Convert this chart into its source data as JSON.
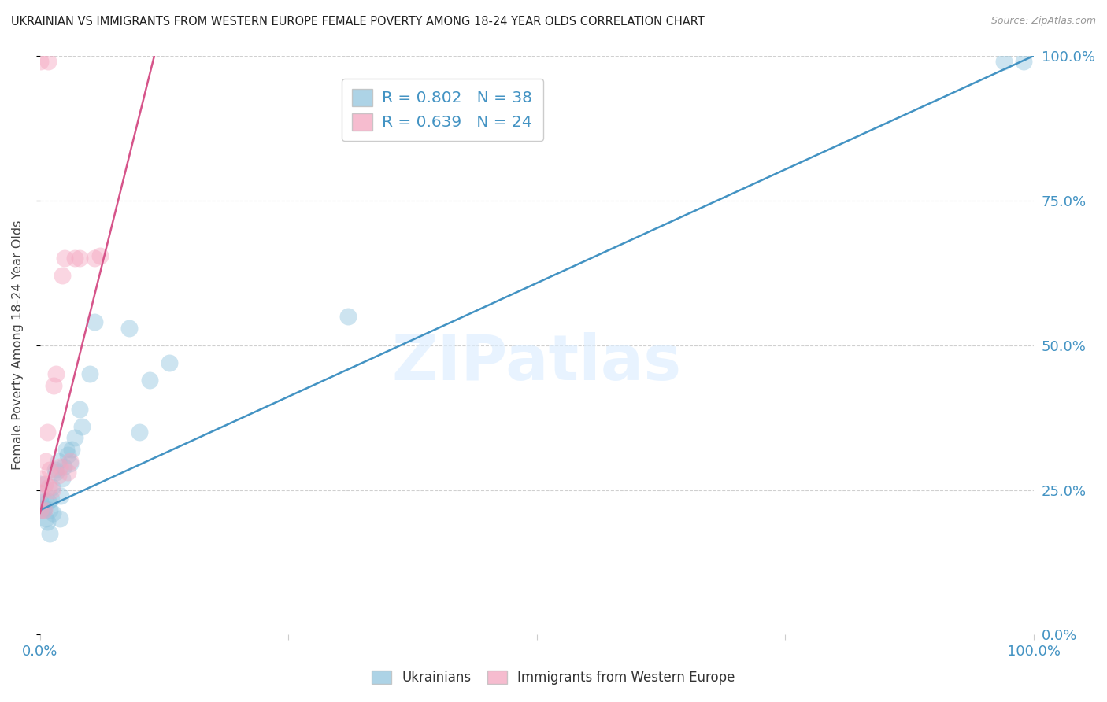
{
  "title": "UKRAINIAN VS IMMIGRANTS FROM WESTERN EUROPE FEMALE POVERTY AMONG 18-24 YEAR OLDS CORRELATION CHART",
  "source": "Source: ZipAtlas.com",
  "ylabel": "Female Poverty Among 18-24 Year Olds",
  "watermark": "ZIPatlas",
  "blue_color": "#92c5de",
  "pink_color": "#f4a6c0",
  "blue_line_color": "#4393c3",
  "pink_line_color": "#d6548a",
  "legend_text_color": "#4393c3",
  "axis_tick_color": "#4393c3",
  "R_blue": "0.802",
  "N_blue": "38",
  "R_pink": "0.639",
  "N_pink": "24",
  "legend_label_blue": "Ukrainians",
  "legend_label_pink": "Immigrants from Western Europe",
  "blue_x": [
    0.0,
    0.0,
    0.0,
    0.0,
    0.003,
    0.004,
    0.005,
    0.006,
    0.007,
    0.008,
    0.01,
    0.01,
    0.011,
    0.012,
    0.013,
    0.015,
    0.016,
    0.018,
    0.02,
    0.021,
    0.022,
    0.024,
    0.026,
    0.028,
    0.03,
    0.032,
    0.035,
    0.04,
    0.042,
    0.05,
    0.055,
    0.09,
    0.1,
    0.11,
    0.13,
    0.31,
    0.97,
    0.99
  ],
  "blue_y": [
    0.215,
    0.22,
    0.23,
    0.26,
    0.215,
    0.22,
    0.23,
    0.2,
    0.195,
    0.23,
    0.175,
    0.215,
    0.235,
    0.255,
    0.21,
    0.285,
    0.28,
    0.3,
    0.2,
    0.24,
    0.27,
    0.29,
    0.32,
    0.31,
    0.295,
    0.32,
    0.34,
    0.39,
    0.36,
    0.45,
    0.54,
    0.53,
    0.35,
    0.44,
    0.47,
    0.55,
    0.99,
    0.99
  ],
  "pink_x": [
    0.0,
    0.0,
    0.0,
    0.0,
    0.004,
    0.005,
    0.006,
    0.007,
    0.008,
    0.009,
    0.01,
    0.012,
    0.014,
    0.016,
    0.018,
    0.02,
    0.022,
    0.025,
    0.028,
    0.03,
    0.035,
    0.04,
    0.055,
    0.06
  ],
  "pink_y": [
    0.215,
    0.245,
    0.27,
    0.99,
    0.215,
    0.26,
    0.3,
    0.35,
    0.99,
    0.255,
    0.285,
    0.25,
    0.43,
    0.45,
    0.275,
    0.29,
    0.62,
    0.65,
    0.28,
    0.3,
    0.65,
    0.65,
    0.65,
    0.655
  ],
  "blue_trend": [
    0.0,
    0.215,
    1.0,
    1.0
  ],
  "pink_trend": [
    0.0,
    0.21,
    0.115,
    1.0
  ],
  "grid_color": "#d0d0d0",
  "title_color": "#222222",
  "source_color": "#999999"
}
